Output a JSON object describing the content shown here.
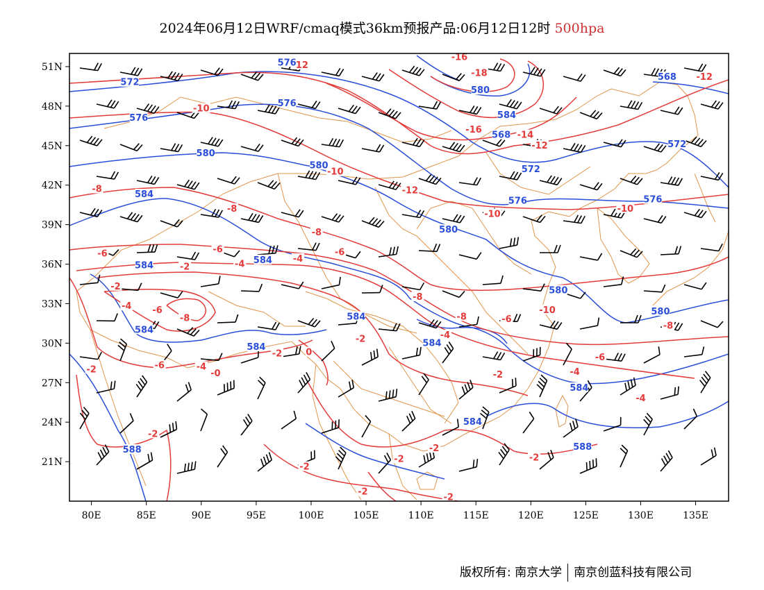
{
  "title": {
    "main": "2024年06月12日WRF/cmaq模式36km预报产品:06月12日12时",
    "level": "500hpa"
  },
  "colors": {
    "temperature": "#e33a3a",
    "height": "#2a4ed8",
    "border": "#e0954a",
    "wind": "#000000"
  },
  "axes": {
    "x_ticks": [
      "80E",
      "85E",
      "90E",
      "95E",
      "100E",
      "105E",
      "110E",
      "115E",
      "120E",
      "125E",
      "130E",
      "135E"
    ],
    "y_ticks": [
      "51N",
      "48N",
      "45N",
      "42N",
      "39N",
      "36N",
      "33N",
      "30N",
      "27N",
      "24N",
      "21N"
    ],
    "x_range": [
      78,
      138
    ],
    "y_range": [
      18,
      52
    ]
  },
  "temperature_labels": [
    {
      "text": "-12",
      "lon": 99.0,
      "lat": 51.1
    },
    {
      "text": "-16",
      "lon": 113.5,
      "lat": 51.7
    },
    {
      "text": "-18",
      "lon": 115.3,
      "lat": 50.5
    },
    {
      "text": "-12",
      "lon": 135.8,
      "lat": 50.2
    },
    {
      "text": "-10",
      "lon": 90.0,
      "lat": 47.8
    },
    {
      "text": "-16",
      "lon": 114.8,
      "lat": 46.2
    },
    {
      "text": "-14",
      "lon": 119.5,
      "lat": 45.8
    },
    {
      "text": "-12",
      "lon": 120.8,
      "lat": 45.0
    },
    {
      "text": "-10",
      "lon": 102.2,
      "lat": 43.0
    },
    {
      "text": "-12",
      "lon": 109.0,
      "lat": 41.6
    },
    {
      "text": "-8",
      "lon": 80.5,
      "lat": 41.7
    },
    {
      "text": "-8",
      "lon": 92.8,
      "lat": 40.2
    },
    {
      "text": "-10",
      "lon": 116.5,
      "lat": 39.8
    },
    {
      "text": "-10",
      "lon": 128.6,
      "lat": 40.2
    },
    {
      "text": "-8",
      "lon": 100.5,
      "lat": 38.4
    },
    {
      "text": "-6",
      "lon": 81.0,
      "lat": 36.8
    },
    {
      "text": "-6",
      "lon": 91.5,
      "lat": 37.1
    },
    {
      "text": "-2",
      "lon": 88.5,
      "lat": 35.8
    },
    {
      "text": "-4",
      "lon": 93.5,
      "lat": 36.0
    },
    {
      "text": "-4",
      "lon": 98.8,
      "lat": 36.4
    },
    {
      "text": "-6",
      "lon": 102.6,
      "lat": 36.9
    },
    {
      "text": "-2",
      "lon": 82.2,
      "lat": 34.3
    },
    {
      "text": "-8",
      "lon": 109.7,
      "lat": 33.5
    },
    {
      "text": "-4",
      "lon": 83.2,
      "lat": 32.8
    },
    {
      "text": "-6",
      "lon": 86.0,
      "lat": 32.5
    },
    {
      "text": "-8",
      "lon": 88.5,
      "lat": 31.9
    },
    {
      "text": "-8",
      "lon": 113.7,
      "lat": 32.0
    },
    {
      "text": "-6",
      "lon": 117.8,
      "lat": 31.8
    },
    {
      "text": "-10",
      "lon": 121.5,
      "lat": 32.5
    },
    {
      "text": "-8",
      "lon": 132.5,
      "lat": 31.3
    },
    {
      "text": "-2",
      "lon": 104.5,
      "lat": 30.3
    },
    {
      "text": "-4",
      "lon": 112.2,
      "lat": 30.6
    },
    {
      "text": "-2",
      "lon": 96.9,
      "lat": 29.2
    },
    {
      "text": "0",
      "lon": 99.8,
      "lat": 29.3
    },
    {
      "text": "-6",
      "lon": 126.3,
      "lat": 28.9
    },
    {
      "text": "-6",
      "lon": 86.2,
      "lat": 28.3
    },
    {
      "text": "-4",
      "lon": 90.0,
      "lat": 28.2
    },
    {
      "text": "-0",
      "lon": 91.3,
      "lat": 27.7
    },
    {
      "text": "-2",
      "lon": 80.0,
      "lat": 28.0
    },
    {
      "text": "-2",
      "lon": 117.0,
      "lat": 27.6
    },
    {
      "text": "-4",
      "lon": 124.0,
      "lat": 27.8
    },
    {
      "text": "-4",
      "lon": 130.0,
      "lat": 25.8
    },
    {
      "text": "-2",
      "lon": 85.6,
      "lat": 23.1
    },
    {
      "text": "-2",
      "lon": 111.2,
      "lat": 22.0
    },
    {
      "text": "-2",
      "lon": 108.0,
      "lat": 21.2
    },
    {
      "text": "-2",
      "lon": 120.3,
      "lat": 21.3
    },
    {
      "text": "-2",
      "lon": 99.4,
      "lat": 20.6
    },
    {
      "text": "-2",
      "lon": 104.7,
      "lat": 18.7
    },
    {
      "text": "-2",
      "lon": 112.5,
      "lat": 18.3
    }
  ],
  "height_labels": [
    {
      "text": "576",
      "lon": 97.8,
      "lat": 51.3
    },
    {
      "text": "572",
      "lon": 83.5,
      "lat": 49.8
    },
    {
      "text": "568",
      "lon": 132.4,
      "lat": 50.2
    },
    {
      "text": "580",
      "lon": 115.4,
      "lat": 49.2
    },
    {
      "text": "576",
      "lon": 97.8,
      "lat": 48.2
    },
    {
      "text": "576",
      "lon": 84.3,
      "lat": 47.1
    },
    {
      "text": "584",
      "lon": 117.8,
      "lat": 47.3
    },
    {
      "text": "568",
      "lon": 117.3,
      "lat": 45.8
    },
    {
      "text": "572",
      "lon": 133.3,
      "lat": 45.1
    },
    {
      "text": "580",
      "lon": 90.4,
      "lat": 44.4
    },
    {
      "text": "580",
      "lon": 100.7,
      "lat": 43.5
    },
    {
      "text": "572",
      "lon": 120.0,
      "lat": 43.2
    },
    {
      "text": "584",
      "lon": 84.8,
      "lat": 41.3
    },
    {
      "text": "576",
      "lon": 118.8,
      "lat": 40.8
    },
    {
      "text": "576",
      "lon": 131.1,
      "lat": 40.9
    },
    {
      "text": "580",
      "lon": 112.5,
      "lat": 38.6
    },
    {
      "text": "584",
      "lon": 95.6,
      "lat": 36.3
    },
    {
      "text": "584",
      "lon": 84.8,
      "lat": 35.9
    },
    {
      "text": "580",
      "lon": 122.5,
      "lat": 34.0
    },
    {
      "text": "580",
      "lon": 131.8,
      "lat": 32.4
    },
    {
      "text": "584",
      "lon": 104.1,
      "lat": 32.0
    },
    {
      "text": "584",
      "lon": 84.8,
      "lat": 31.0
    },
    {
      "text": "584",
      "lon": 111.0,
      "lat": 30.0
    },
    {
      "text": "584",
      "lon": 95.0,
      "lat": 29.7
    },
    {
      "text": "584",
      "lon": 124.4,
      "lat": 26.6
    },
    {
      "text": "584",
      "lon": 114.7,
      "lat": 24.0
    },
    {
      "text": "588",
      "lon": 83.7,
      "lat": 21.9
    },
    {
      "text": "588",
      "lon": 124.7,
      "lat": 22.1
    }
  ],
  "copyright": {
    "left": "版权所有: 南京大学",
    "right": "南京创蓝科技有限公司"
  }
}
